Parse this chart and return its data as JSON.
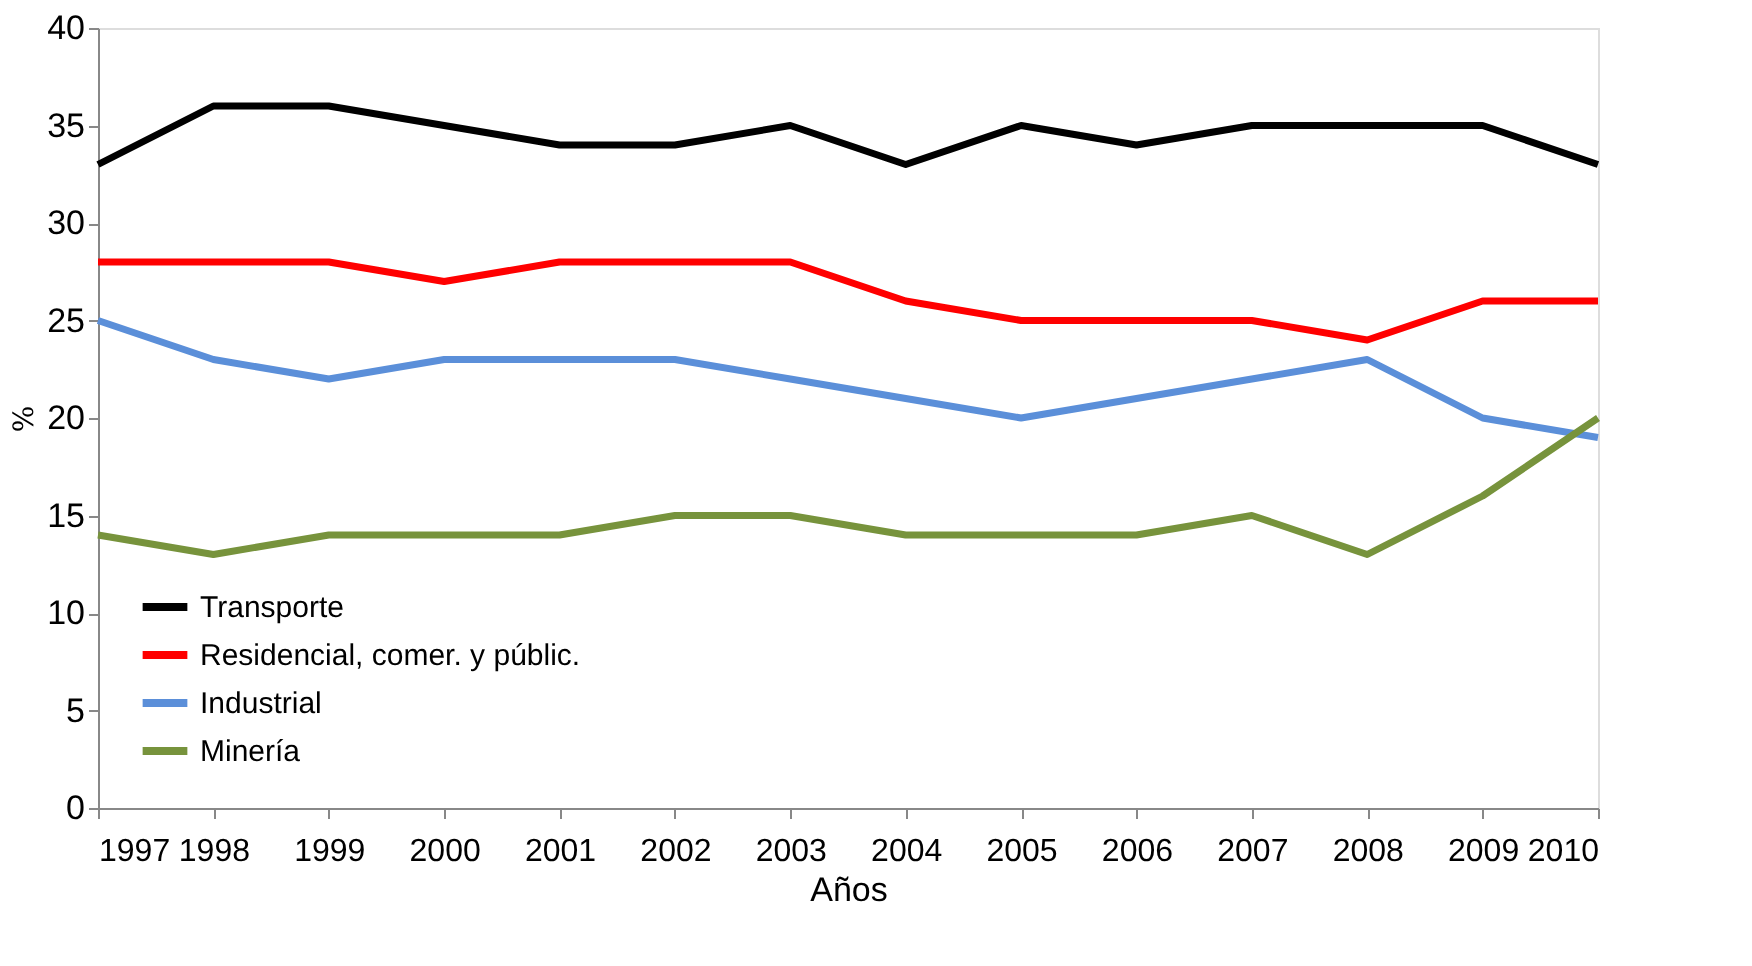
{
  "chart_data": {
    "type": "line",
    "xlabel": "Años",
    "ylabel": "%",
    "categories": [
      "1997",
      "1998",
      "1999",
      "2000",
      "2001",
      "2002",
      "2003",
      "2004",
      "2005",
      "2006",
      "2007",
      "2008",
      "2009",
      "2010"
    ],
    "series": [
      {
        "name": "Transporte",
        "color": "#000000",
        "values": [
          33,
          36,
          36,
          35,
          34,
          34,
          35,
          33,
          35,
          34,
          35,
          35,
          35,
          33
        ]
      },
      {
        "name": "Residencial, comer. y públic.",
        "color": "#ff0000",
        "values": [
          28,
          28,
          28,
          27,
          28,
          28,
          28,
          26,
          25,
          25,
          25,
          24,
          26,
          26
        ]
      },
      {
        "name": "Industrial",
        "color": "#5b8fd9",
        "values": [
          25,
          23,
          22,
          23,
          23,
          23,
          22,
          21,
          20,
          21,
          22,
          23,
          20,
          19
        ]
      },
      {
        "name": "Minería",
        "color": "#77933c",
        "values": [
          14,
          13,
          14,
          14,
          14,
          15,
          15,
          14,
          14,
          14,
          15,
          13,
          16,
          20
        ]
      }
    ],
    "ylim": [
      0,
      40
    ],
    "yticks": [
      0,
      5,
      10,
      15,
      20,
      25,
      30,
      35,
      40
    ],
    "grid": false,
    "legend": "bottom left",
    "marker": "none",
    "line_style": "solid"
  }
}
